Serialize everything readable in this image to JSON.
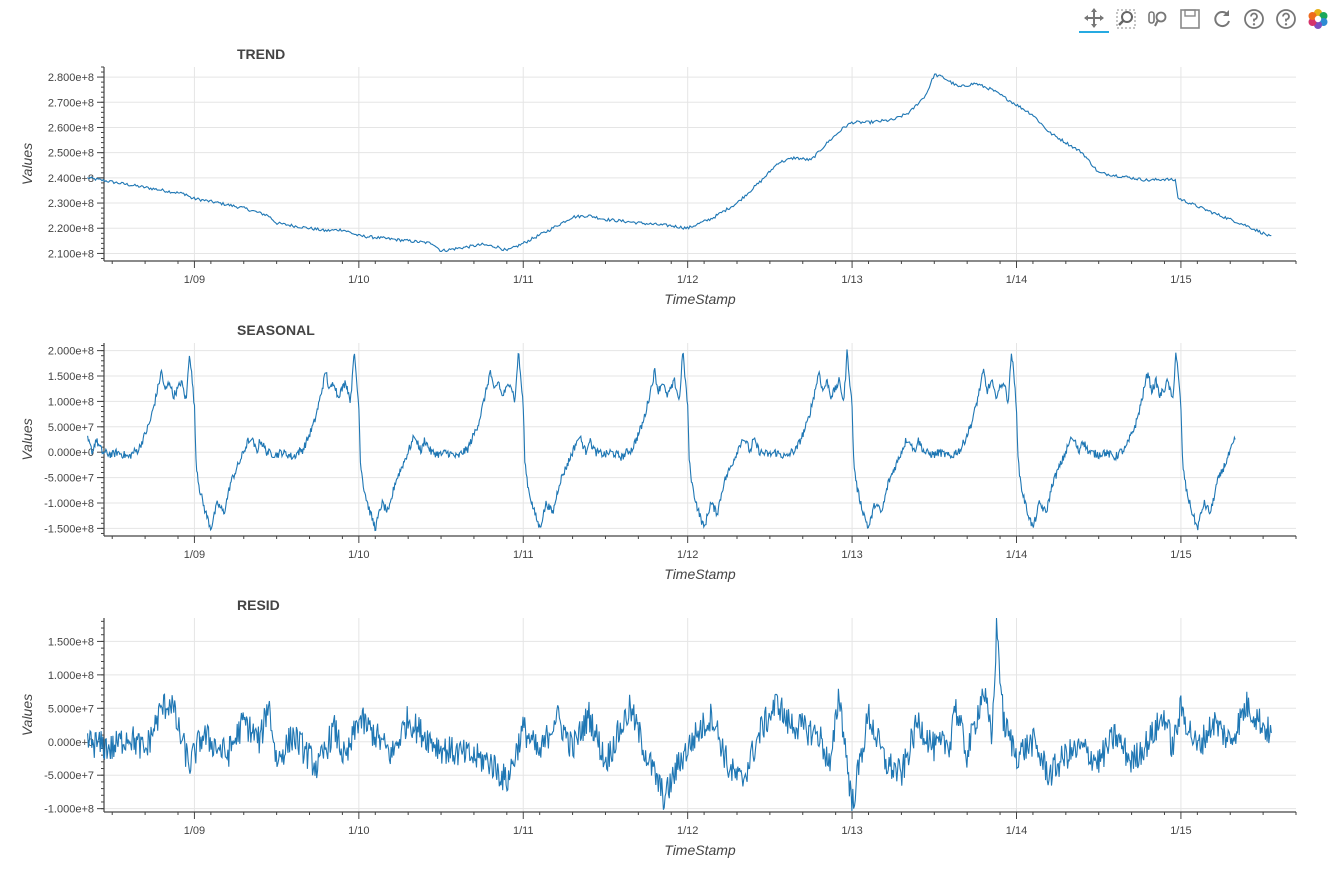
{
  "toolbar": {
    "tools": [
      {
        "name": "pan-tool",
        "icon": "move-icon",
        "active": true
      },
      {
        "name": "box-zoom-tool",
        "icon": "box-zoom-icon",
        "active": false
      },
      {
        "name": "wheel-zoom-tool",
        "icon": "wheel-zoom-icon",
        "active": false
      },
      {
        "name": "save-tool",
        "icon": "save-icon",
        "active": false
      },
      {
        "name": "reset-tool",
        "icon": "reset-icon",
        "active": false
      },
      {
        "name": "hover-help-tool",
        "icon": "help-icon",
        "active": false
      },
      {
        "name": "help-tool",
        "icon": "help-icon",
        "active": false
      },
      {
        "name": "bokeh-logo",
        "icon": "bokeh-logo-icon",
        "active": false
      }
    ]
  },
  "colors": {
    "line": "#1f77b4",
    "grid": "#e5e5e5",
    "axis": "#444444",
    "text": "#444444"
  },
  "chart_data": [
    {
      "type": "line",
      "title": "TREND",
      "xlabel": "TimeStamp",
      "ylabel": "Values",
      "xlim": [
        8.45,
        15.7
      ],
      "ylim": [
        207000000.0,
        284000000.0
      ],
      "x_ticks": [
        9,
        10,
        11,
        12,
        13,
        14,
        15
      ],
      "x_tick_labels": [
        "1/09",
        "1/10",
        "1/11",
        "1/12",
        "1/13",
        "1/14",
        "1/15"
      ],
      "y_ticks": [
        210000000.0,
        220000000.0,
        230000000.0,
        240000000.0,
        250000000.0,
        260000000.0,
        270000000.0,
        280000000.0
      ],
      "y_tick_labels": [
        "2.100e+8",
        "2.200e+8",
        "2.300e+8",
        "2.400e+8",
        "2.500e+8",
        "2.600e+8",
        "2.700e+8",
        "2.800e+8"
      ],
      "series": [
        {
          "name": "trend",
          "x": [
            8.35,
            8.95,
            8.98,
            9.15,
            9.3,
            9.45,
            9.5,
            9.6,
            9.8,
            9.9,
            10.0,
            10.15,
            10.3,
            10.45,
            10.5,
            10.6,
            10.75,
            10.85,
            10.9,
            11.0,
            11.15,
            11.3,
            11.4,
            11.5,
            11.65,
            11.8,
            11.9,
            12.0,
            12.15,
            12.3,
            12.45,
            12.55,
            12.65,
            12.75,
            12.85,
            12.95,
            13.0,
            13.1,
            13.25,
            13.35,
            13.45,
            13.5,
            13.55,
            13.65,
            13.75,
            13.85,
            14.0,
            14.1,
            14.2,
            14.3,
            14.4,
            14.5,
            14.6,
            14.7,
            14.8,
            14.9,
            14.97,
            14.98,
            15.2,
            15.4,
            15.55
          ],
          "y": [
            240000000.0,
            233500000.0,
            232000000.0,
            230000000.0,
            228000000.0,
            225000000.0,
            222000000.0,
            221000000.0,
            219000000.0,
            219500000.0,
            217000000.0,
            216000000.0,
            215000000.0,
            214000000.0,
            211000000.0,
            212000000.0,
            213500000.0,
            212500000.0,
            211000000.0,
            214000000.0,
            219000000.0,
            224500000.0,
            225000000.0,
            223500000.0,
            222500000.0,
            221500000.0,
            221000000.0,
            220000000.0,
            224000000.0,
            230000000.0,
            239000000.0,
            246000000.0,
            248000000.0,
            247000000.0,
            254000000.0,
            260000000.0,
            262000000.0,
            262000000.0,
            263000000.0,
            266000000.0,
            273000000.0,
            281000000.0,
            280000000.0,
            276000000.0,
            277500000.0,
            275000000.0,
            269000000.0,
            265000000.0,
            258000000.0,
            254000000.0,
            250000000.0,
            242000000.0,
            241000000.0,
            240000000.0,
            239000000.0,
            239500000.0,
            239000000.0,
            232000000.0,
            226000000.0,
            221000000.0,
            216500000.0
          ]
        }
      ]
    },
    {
      "type": "line",
      "title": "SEASONAL",
      "xlabel": "TimeStamp",
      "ylabel": "Values",
      "xlim": [
        8.45,
        15.7
      ],
      "ylim": [
        -165000000.0,
        215000000.0
      ],
      "x_ticks": [
        9,
        10,
        11,
        12,
        13,
        14,
        15
      ],
      "x_tick_labels": [
        "1/09",
        "1/10",
        "1/11",
        "1/12",
        "1/13",
        "1/14",
        "1/15"
      ],
      "y_ticks": [
        -150000000.0,
        -100000000.0,
        -50000000.0,
        0,
        50000000.0,
        100000000.0,
        150000000.0,
        200000000.0
      ],
      "y_tick_labels": [
        "-1.500e+8",
        "-1.000e+8",
        "-5.000e+7",
        "0.000e+0",
        "5.000e+7",
        "1.000e+8",
        "1.500e+8",
        "2.000e+8"
      ],
      "series": [
        {
          "name": "seasonal",
          "x": [
            8.35,
            8.38,
            8.4,
            8.44,
            8.5,
            8.53,
            8.57,
            8.6,
            8.63,
            8.66,
            8.7,
            8.73,
            8.76,
            8.8,
            8.82,
            8.85,
            8.87,
            8.9,
            8.92,
            8.95,
            8.97,
            9.0,
            9.01,
            9.03,
            9.06,
            9.1,
            9.14,
            9.18,
            9.22,
            9.28,
            9.33
          ],
          "y": [
            25000000.0,
            0,
            25000000.0,
            0,
            -5000000.0,
            0,
            -5000000.0,
            -10000000.0,
            0,
            5000000.0,
            35000000.0,
            60000000.0,
            100000000.0,
            160000000.0,
            120000000.0,
            140000000.0,
            110000000.0,
            125000000.0,
            140000000.0,
            100000000.0,
            200000000.0,
            90000000.0,
            -20000000.0,
            -70000000.0,
            -110000000.0,
            -150000000.0,
            -100000000.0,
            -120000000.0,
            -60000000.0,
            -15000000.0,
            25000000.0
          ]
        }
      ]
    },
    {
      "type": "line",
      "title": "RESID",
      "xlabel": "TimeStamp",
      "ylabel": "Values",
      "xlim": [
        8.45,
        15.7
      ],
      "ylim": [
        -105000000.0,
        185000000.0
      ],
      "x_ticks": [
        9,
        10,
        11,
        12,
        13,
        14,
        15
      ],
      "x_tick_labels": [
        "1/09",
        "1/10",
        "1/11",
        "1/12",
        "1/13",
        "1/14",
        "1/15"
      ],
      "y_ticks": [
        -100000000.0,
        -50000000.0,
        0,
        50000000.0,
        100000000.0,
        150000000.0
      ],
      "y_tick_labels": [
        "-1.000e+8",
        "-5.000e+7",
        "0.000e+0",
        "5.000e+7",
        "1.000e+8",
        "1.500e+8"
      ],
      "series": [
        {
          "name": "resid",
          "x": [
            8.35,
            8.5,
            8.6,
            8.7,
            8.8,
            8.86,
            8.9,
            8.97,
            9.05,
            9.2,
            9.3,
            9.4,
            9.45,
            9.5,
            9.6,
            9.75,
            9.85,
            9.92,
            10.0,
            10.1,
            10.2,
            10.3,
            10.35,
            10.5,
            10.65,
            10.8,
            10.9,
            11.0,
            11.1,
            11.2,
            11.3,
            11.4,
            11.5,
            11.65,
            11.75,
            11.8,
            11.86,
            11.95,
            12.05,
            12.15,
            12.25,
            12.33,
            12.45,
            12.55,
            12.6,
            12.7,
            12.8,
            12.87,
            12.92,
            13.0,
            13.1,
            13.2,
            13.3,
            13.4,
            13.5,
            13.6,
            13.62,
            13.7,
            13.8,
            13.85,
            13.88,
            13.92,
            14.0,
            14.1,
            14.2,
            14.3,
            14.4,
            14.5,
            14.6,
            14.7,
            14.8,
            14.9,
            14.95,
            15.0,
            15.1,
            15.2,
            15.3,
            15.4,
            15.55
          ],
          "y": [
            0,
            -10000000.0,
            10000000.0,
            -15000000.0,
            50000000.0,
            60000000.0,
            20000000.0,
            -35000000.0,
            10000000.0,
            -20000000.0,
            30000000.0,
            0,
            60000000.0,
            -30000000.0,
            10000000.0,
            -40000000.0,
            20000000.0,
            -30000000.0,
            35000000.0,
            10000000.0,
            -20000000.0,
            35000000.0,
            20000000.0,
            -10000000.0,
            -20000000.0,
            -30000000.0,
            -60000000.0,
            20000000.0,
            -20000000.0,
            40000000.0,
            -10000000.0,
            40000000.0,
            -30000000.0,
            50000000.0,
            -20000000.0,
            -50000000.0,
            -85000000.0,
            -30000000.0,
            10000000.0,
            40000000.0,
            -40000000.0,
            -60000000.0,
            20000000.0,
            60000000.0,
            30000000.0,
            20000000.0,
            10000000.0,
            -40000000.0,
            75000000.0,
            -95000000.0,
            40000000.0,
            -30000000.0,
            -50000000.0,
            30000000.0,
            -10000000.0,
            0,
            60000000.0,
            -20000000.0,
            80000000.0,
            0,
            175000000.0,
            30000000.0,
            -20000000.0,
            0,
            -50000000.0,
            -20000000.0,
            -10000000.0,
            -30000000.0,
            10000000.0,
            -30000000.0,
            0,
            40000000.0,
            -10000000.0,
            50000000.0,
            -10000000.0,
            30000000.0,
            0,
            55000000.0,
            10000000.0
          ]
        }
      ]
    }
  ]
}
